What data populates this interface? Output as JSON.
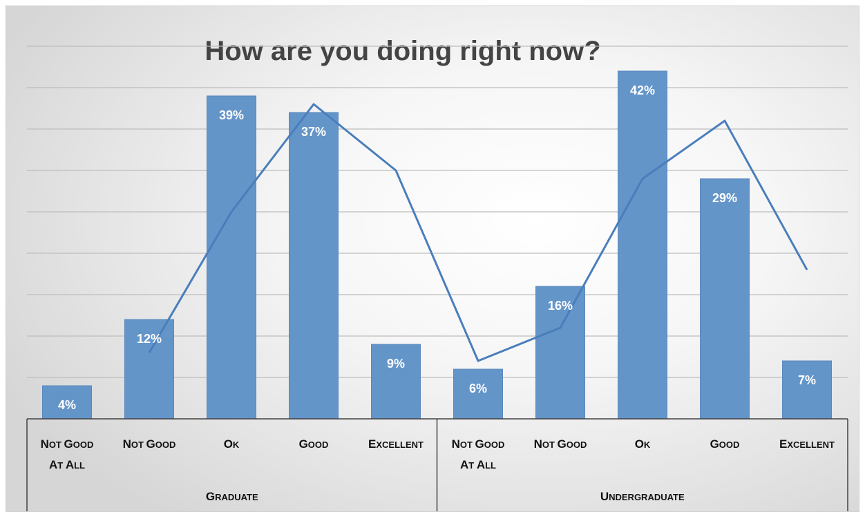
{
  "chart_data": {
    "type": "bar",
    "title": "How are you doing right now?",
    "groups": [
      {
        "name": "Graduate",
        "categories": [
          "Not good at all",
          "Not good",
          "Ok",
          "Good",
          "Excellent"
        ],
        "values": [
          4,
          12,
          39,
          37,
          9
        ]
      },
      {
        "name": "Undergraduate",
        "categories": [
          "Not good at all",
          "Not good",
          "Ok",
          "Good",
          "Excellent"
        ],
        "values": [
          6,
          16,
          42,
          29,
          7
        ]
      }
    ],
    "data_labels": [
      "4%",
      "12%",
      "39%",
      "37%",
      "9%",
      "6%",
      "16%",
      "42%",
      "29%",
      "7%"
    ],
    "line_series": {
      "description_free": true,
      "values": [
        null,
        8,
        25,
        38,
        30,
        7,
        11,
        29,
        36,
        18
      ]
    },
    "ylim": [
      0,
      45
    ],
    "grid": true,
    "legend": "none",
    "xlabel": "",
    "ylabel": "",
    "colors": {
      "bar": "#6495c9",
      "bar_edge": "#5a88bd",
      "line": "#4a7ebb",
      "grid": "#bdbdbd",
      "axis": "#404040",
      "title": "#444444"
    }
  }
}
